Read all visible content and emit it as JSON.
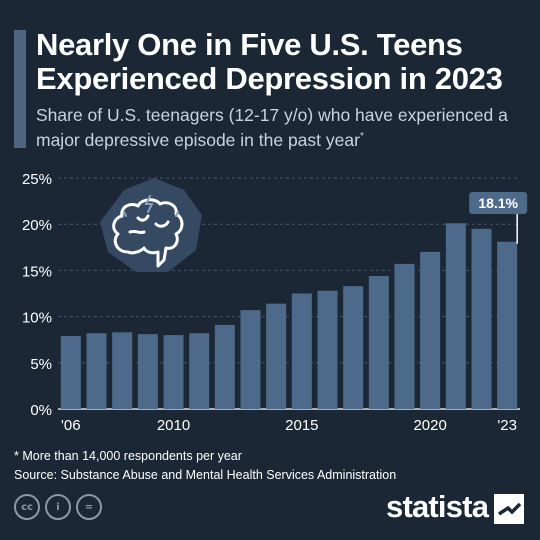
{
  "header": {
    "title": "Nearly One in Five U.S. Teens\nExperienced Depression in 2023",
    "subtitle": "Share of U.S. teenagers (12-17 y/o) who have experienced a major depressive episode in the past year",
    "subtitle_mark": "*"
  },
  "chart_data": {
    "type": "bar",
    "title": "Nearly One in Five U.S. Teens Experienced Depression in 2023",
    "subtitle": "Share of U.S. teenagers (12-17 y/o) who have experienced a major depressive episode in the past year",
    "categories": [
      "2006",
      "2007",
      "2008",
      "2009",
      "2010",
      "2011",
      "2012",
      "2013",
      "2014",
      "2015",
      "2016",
      "2017",
      "2018",
      "2019",
      "2020",
      "2021",
      "2022",
      "2023"
    ],
    "x_tick_labels": [
      "'06",
      "2010",
      "2015",
      "2020",
      "'23"
    ],
    "x_tick_positions": [
      0,
      4,
      9,
      14,
      17
    ],
    "y_tick_labels": [
      "0%",
      "5%",
      "10%",
      "15%",
      "20%",
      "25%"
    ],
    "values": [
      7.9,
      8.2,
      8.3,
      8.1,
      8.0,
      8.2,
      9.1,
      10.7,
      11.4,
      12.5,
      12.8,
      13.3,
      14.4,
      15.7,
      17.0,
      20.1,
      19.5,
      18.1
    ],
    "ylim": [
      0,
      25
    ],
    "unit": "%",
    "grid": true,
    "highlight": {
      "index": 17,
      "label": "18.1%"
    },
    "bar_color": "#4e6a8a",
    "background": "#1b2735"
  },
  "icon": {
    "name": "brain-icon"
  },
  "footer": {
    "footnote": "* More than 14,000 respondents per year",
    "source": "Source: Substance Abuse and Mental Health Services Administration",
    "license_icons": [
      "cc-icon",
      "by-icon",
      "nd-icon"
    ],
    "license_glyphs": [
      "cc",
      "i",
      "="
    ],
    "brand": "statista"
  }
}
